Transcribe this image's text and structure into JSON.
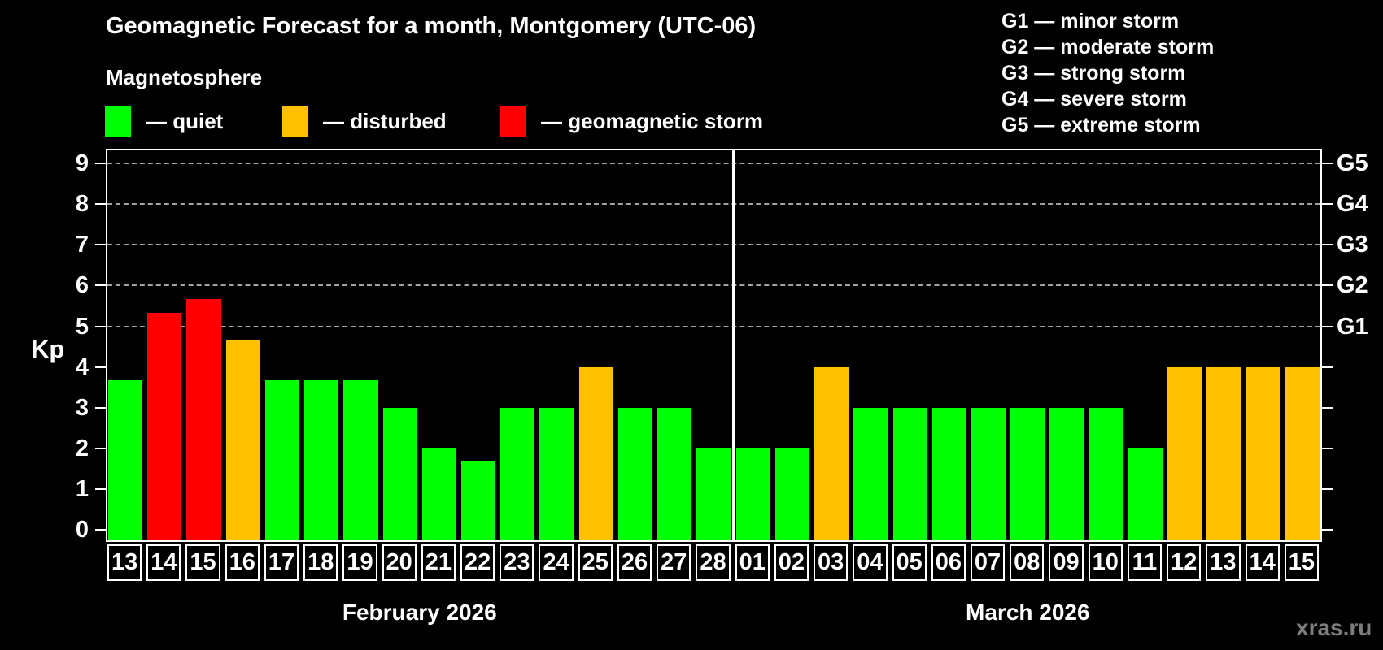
{
  "title": "Geomagnetic Forecast for a month, Montgomery (UTC-06)",
  "subtitle": "Magnetosphere",
  "legend": {
    "items": [
      {
        "key": "quiet",
        "label": "— quiet",
        "color": "#00ff00"
      },
      {
        "key": "disturbed",
        "label": "— disturbed",
        "color": "#ffc000"
      },
      {
        "key": "storm",
        "label": "— geomagnetic storm",
        "color": "#ff0000"
      }
    ]
  },
  "storm_scale_legend": [
    "G1 — minor storm",
    "G2 — moderate storm",
    "G3 — strong storm",
    "G4 — severe storm",
    "G5 — extreme storm"
  ],
  "watermark": "xras.ru",
  "chart_data": {
    "type": "bar",
    "ylabel": "Kp",
    "ylim": [
      0,
      9
    ],
    "yticks": [
      0,
      1,
      2,
      3,
      4,
      5,
      6,
      7,
      8,
      9
    ],
    "gridlines_kp": [
      5,
      6,
      7,
      8,
      9
    ],
    "grid_style": "horizontal dashed gray lines at G-storm levels only",
    "g_levels": [
      {
        "label": "G1",
        "kp": 5
      },
      {
        "label": "G2",
        "kp": 6
      },
      {
        "label": "G3",
        "kp": 7
      },
      {
        "label": "G4",
        "kp": 8
      },
      {
        "label": "G5",
        "kp": 9
      }
    ],
    "months": [
      {
        "label": "February 2026",
        "days": [
          {
            "day": "13",
            "kp": 3.67,
            "status": "quiet"
          },
          {
            "day": "14",
            "kp": 5.33,
            "status": "storm"
          },
          {
            "day": "15",
            "kp": 5.67,
            "status": "storm"
          },
          {
            "day": "16",
            "kp": 4.67,
            "status": "disturbed"
          },
          {
            "day": "17",
            "kp": 3.67,
            "status": "quiet"
          },
          {
            "day": "18",
            "kp": 3.67,
            "status": "quiet"
          },
          {
            "day": "19",
            "kp": 3.67,
            "status": "quiet"
          },
          {
            "day": "20",
            "kp": 3,
            "status": "quiet"
          },
          {
            "day": "21",
            "kp": 2,
            "status": "quiet"
          },
          {
            "day": "22",
            "kp": 1.67,
            "status": "quiet"
          },
          {
            "day": "23",
            "kp": 3,
            "status": "quiet"
          },
          {
            "day": "24",
            "kp": 3,
            "status": "quiet"
          },
          {
            "day": "25",
            "kp": 4,
            "status": "disturbed"
          },
          {
            "day": "26",
            "kp": 3,
            "status": "quiet"
          },
          {
            "day": "27",
            "kp": 3,
            "status": "quiet"
          },
          {
            "day": "28",
            "kp": 2,
            "status": "quiet"
          }
        ]
      },
      {
        "label": "March 2026",
        "days": [
          {
            "day": "01",
            "kp": 2,
            "status": "quiet"
          },
          {
            "day": "02",
            "kp": 2,
            "status": "quiet"
          },
          {
            "day": "03",
            "kp": 4,
            "status": "disturbed"
          },
          {
            "day": "04",
            "kp": 3,
            "status": "quiet"
          },
          {
            "day": "05",
            "kp": 3,
            "status": "quiet"
          },
          {
            "day": "06",
            "kp": 3,
            "status": "quiet"
          },
          {
            "day": "07",
            "kp": 3,
            "status": "quiet"
          },
          {
            "day": "08",
            "kp": 3,
            "status": "quiet"
          },
          {
            "day": "09",
            "kp": 3,
            "status": "quiet"
          },
          {
            "day": "10",
            "kp": 3,
            "status": "quiet"
          },
          {
            "day": "11",
            "kp": 2,
            "status": "quiet"
          },
          {
            "day": "12",
            "kp": 4,
            "status": "disturbed"
          },
          {
            "day": "13",
            "kp": 4,
            "status": "disturbed"
          },
          {
            "day": "14",
            "kp": 4,
            "status": "disturbed"
          },
          {
            "day": "15",
            "kp": 4,
            "status": "disturbed"
          }
        ]
      }
    ]
  }
}
